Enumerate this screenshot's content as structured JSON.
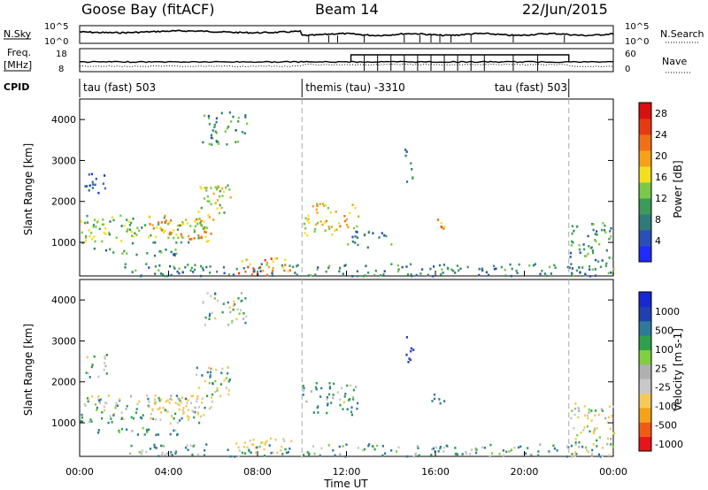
{
  "header": {
    "title_left": "Goose Bay (fitACF)",
    "title_center": "Beam 14",
    "title_right": "22/Jun/2015"
  },
  "strips": {
    "nsky_label": "N.Sky",
    "nsky_ticks": [
      "10^5",
      "10^0"
    ],
    "nsearch_label": "N.Search",
    "nsearch_ticks": [
      "10^5",
      "10^0"
    ],
    "freq_label_1": "Freq.",
    "freq_label_2": "[MHz]",
    "freq_ticks": [
      "18",
      "8"
    ],
    "nave_label": "Nave",
    "nave_ticks": [
      "60",
      "0"
    ],
    "cpid_label": "CPID",
    "cpid_segments": [
      {
        "label": "tau (fast) 503",
        "start_hour": 0,
        "end_hour": 10
      },
      {
        "label": "themis (tau) -3310",
        "start_hour": 10,
        "end_hour": 22
      },
      {
        "label": "tau (fast) 503",
        "start_hour": 22,
        "end_hour": 24
      }
    ]
  },
  "xaxis": {
    "label": "Time UT",
    "ticks": [
      "00:00",
      "04:00",
      "08:00",
      "12:00",
      "16:00",
      "20:00",
      "00:00"
    ]
  },
  "colors": {
    "power_scale": [
      "#1f2bff",
      "#2a4fb8",
      "#2f7a7a",
      "#3c9a5a",
      "#7ac94a",
      "#f2e020",
      "#f5a21a",
      "#f0701a",
      "#e63a12",
      "#d81010"
    ],
    "velocity_scale": [
      "#e8141c",
      "#f05a14",
      "#f5a21a",
      "#f5c85a",
      "#c8c8c8",
      "#b0b0b0",
      "#7fcf40",
      "#2fa04a",
      "#2f7a9a",
      "#2040b0",
      "#1828d0"
    ]
  },
  "chart_data": [
    {
      "type": "heatmap",
      "title": "Power",
      "xlabel": "Time UT",
      "ylabel": "Slant Range [km]",
      "xlim": [
        0,
        24
      ],
      "ylim": [
        180,
        4500
      ],
      "yticks": [
        1000,
        2000,
        3000,
        4000
      ],
      "colorbar": {
        "label": "Power [dB]",
        "ticks": [
          4,
          8,
          12,
          16,
          20,
          24,
          28
        ],
        "range": [
          0,
          30
        ]
      },
      "dashed_vlines": [
        10,
        22
      ],
      "regions": [
        {
          "t": [
            0.0,
            5.8
          ],
          "r": [
            1000,
            1700
          ],
          "value": 13
        },
        {
          "t": [
            3.0,
            6.0
          ],
          "r": [
            1100,
            1700
          ],
          "value": 19
        },
        {
          "t": [
            0.2,
            1.2
          ],
          "r": [
            2100,
            2700
          ],
          "value": 6
        },
        {
          "t": [
            5.2,
            6.8
          ],
          "r": [
            1600,
            2500
          ],
          "value": 15
        },
        {
          "t": [
            5.5,
            7.5
          ],
          "r": [
            3400,
            4200
          ],
          "value": 10
        },
        {
          "t": [
            0.5,
            4.5
          ],
          "r": [
            700,
            900
          ],
          "value": 9
        },
        {
          "t": [
            10.0,
            12.5
          ],
          "r": [
            1200,
            2000
          ],
          "value": 17
        },
        {
          "t": [
            12.0,
            14.0
          ],
          "r": [
            900,
            1300
          ],
          "value": 8
        },
        {
          "t": [
            7.0,
            9.5
          ],
          "r": [
            200,
            650
          ],
          "value": 21
        },
        {
          "t": [
            2.0,
            23.5
          ],
          "r": [
            200,
            500
          ],
          "value": 8
        },
        {
          "t": [
            15.8,
            16.4
          ],
          "r": [
            1350,
            1750
          ],
          "value": 22
        },
        {
          "t": [
            14.6,
            15.0
          ],
          "r": [
            2500,
            3300
          ],
          "value": 9
        },
        {
          "t": [
            22.0,
            24.0
          ],
          "r": [
            200,
            1500
          ],
          "value": 9
        }
      ]
    },
    {
      "type": "heatmap",
      "title": "Velocity",
      "xlabel": "Time UT",
      "ylabel": "Slant Range [km]",
      "xlim": [
        0,
        24
      ],
      "ylim": [
        180,
        4500
      ],
      "yticks": [
        1000,
        2000,
        3000,
        4000
      ],
      "colorbar": {
        "label": "Velocity [m s-1]",
        "ticks": [
          1000,
          500,
          100,
          25,
          -25,
          -100,
          -500,
          -1000
        ]
      },
      "dashed_vlines": [
        10,
        22
      ],
      "regions": [
        {
          "t": [
            0.0,
            5.8
          ],
          "r": [
            1000,
            1700
          ],
          "value": 0
        },
        {
          "t": [
            3.0,
            6.0
          ],
          "r": [
            1100,
            1700
          ],
          "value": -150
        },
        {
          "t": [
            0.2,
            1.2
          ],
          "r": [
            2100,
            2700
          ],
          "value": 0
        },
        {
          "t": [
            5.2,
            6.8
          ],
          "r": [
            1600,
            2500
          ],
          "value": 0
        },
        {
          "t": [
            5.5,
            7.5
          ],
          "r": [
            3400,
            4200
          ],
          "value": 0
        },
        {
          "t": [
            0.5,
            4.5
          ],
          "r": [
            700,
            900
          ],
          "value": 60
        },
        {
          "t": [
            10.0,
            12.5
          ],
          "r": [
            1200,
            2000
          ],
          "value": 40
        },
        {
          "t": [
            7.0,
            9.5
          ],
          "r": [
            200,
            650
          ],
          "value": -200
        },
        {
          "t": [
            2.0,
            23.5
          ],
          "r": [
            200,
            500
          ],
          "value": 50
        },
        {
          "t": [
            15.8,
            16.4
          ],
          "r": [
            1350,
            1750
          ],
          "value": 300
        },
        {
          "t": [
            14.6,
            15.0
          ],
          "r": [
            2500,
            3300
          ],
          "value": 600
        },
        {
          "t": [
            22.0,
            24.0
          ],
          "r": [
            200,
            1500
          ],
          "value": -80
        }
      ]
    }
  ]
}
